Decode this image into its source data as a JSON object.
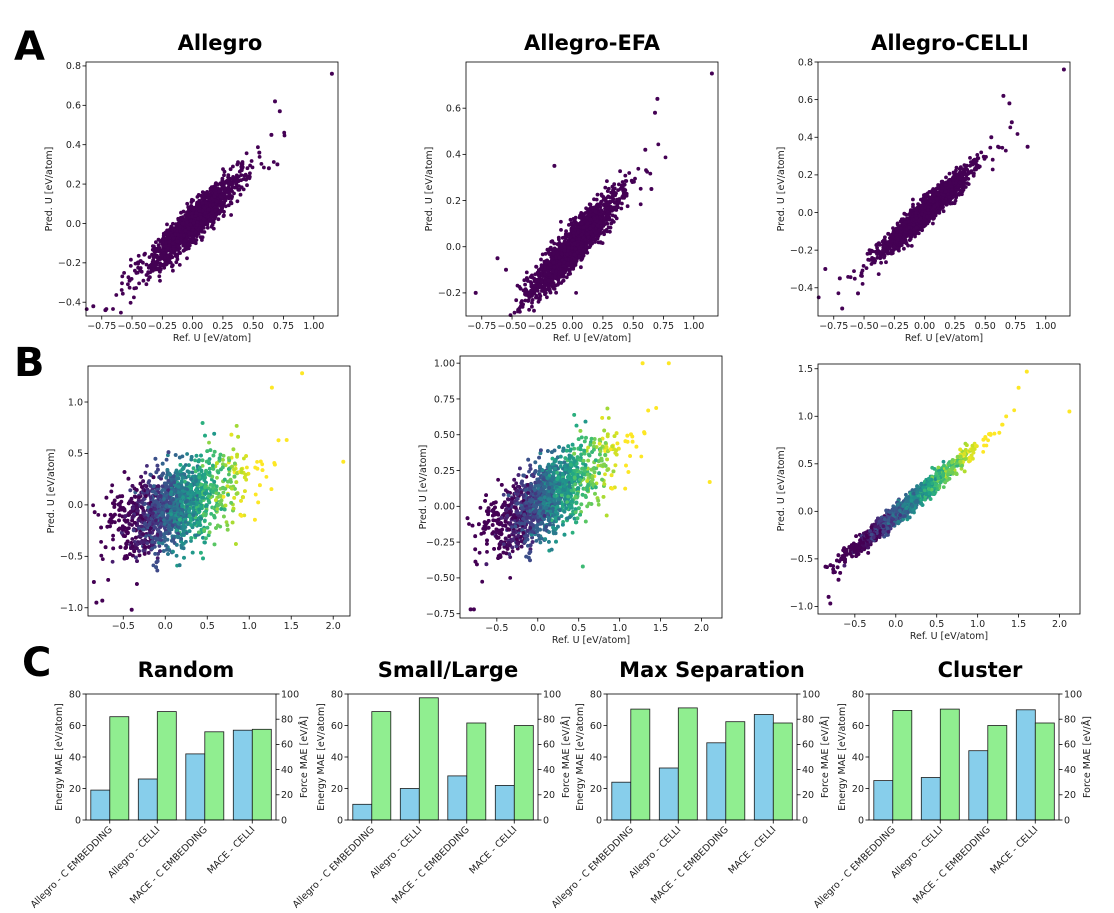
{
  "panel_labels": [
    "A",
    "B",
    "C"
  ],
  "chart_data": [
    {
      "id": "A1",
      "type": "scatter",
      "title": "Allegro",
      "xlabel": "Ref. U [eV/atom]",
      "ylabel": "Pred. U [eV/atom]",
      "xlim": [
        -0.88,
        1.2
      ],
      "ylim": [
        -0.47,
        0.82
      ],
      "xticks": [
        -0.75,
        -0.5,
        -0.25,
        0.0,
        0.25,
        0.5,
        0.75,
        1.0
      ],
      "xtick_labels": [
        "−0.75",
        "−0.50",
        "−0.25",
        "0.00",
        "0.25",
        "0.50",
        "0.75",
        "1.00"
      ],
      "yticks": [
        -0.4,
        -0.2,
        0.0,
        0.2,
        0.4,
        0.6,
        0.8
      ],
      "ytick_labels": [
        "−0.4",
        "−0.2",
        "0.0",
        "0.2",
        "0.4",
        "0.6",
        "0.8"
      ],
      "colormap": "viridis",
      "color_by_x": false,
      "n_points": 1600,
      "trend": {
        "slope": 0.58,
        "intercept": 0.0,
        "spread": 0.045
      },
      "highlight_points": [
        [
          1.15,
          0.76
        ],
        [
          0.68,
          0.62
        ],
        [
          0.72,
          0.57
        ],
        [
          0.65,
          0.45
        ],
        [
          0.55,
          0.36
        ],
        [
          -0.82,
          -0.42
        ],
        [
          -0.72,
          -0.44
        ],
        [
          -0.52,
          -0.29
        ],
        [
          0.63,
          0.28
        ],
        [
          0.7,
          0.3
        ]
      ]
    },
    {
      "id": "A2",
      "type": "scatter",
      "title": "Allegro-EFA",
      "xlabel": "Ref. U [eV/atom]",
      "ylabel": "Pred. U [eV/atom]",
      "xlim": [
        -0.88,
        1.2
      ],
      "ylim": [
        -0.3,
        0.8
      ],
      "xticks": [
        -0.75,
        -0.5,
        -0.25,
        0.0,
        0.25,
        0.5,
        0.75,
        1.0
      ],
      "xtick_labels": [
        "−0.75",
        "−0.50",
        "−0.25",
        "0.00",
        "0.25",
        "0.50",
        "0.75",
        "1.00"
      ],
      "yticks": [
        -0.2,
        0.0,
        0.2,
        0.4,
        0.6
      ],
      "ytick_labels": [
        "−0.2",
        "0.0",
        "0.2",
        "0.4",
        "0.6"
      ],
      "colormap": "viridis",
      "color_by_x": false,
      "n_points": 1600,
      "trend": {
        "slope": 0.55,
        "intercept": 0.0,
        "spread": 0.045
      },
      "highlight_points": [
        [
          1.15,
          0.75
        ],
        [
          0.7,
          0.64
        ],
        [
          0.68,
          0.58
        ],
        [
          0.6,
          0.42
        ],
        [
          -0.15,
          0.35
        ],
        [
          -0.8,
          -0.2
        ],
        [
          -0.62,
          -0.05
        ],
        [
          -0.55,
          -0.1
        ],
        [
          -0.45,
          -0.28
        ],
        [
          0.65,
          0.25
        ]
      ]
    },
    {
      "id": "A3",
      "type": "scatter",
      "title": "Allegro-CELLI",
      "xlabel": "Ref. U [eV/atom]",
      "ylabel": "Pred. U [eV/atom]",
      "xlim": [
        -0.88,
        1.2
      ],
      "ylim": [
        -0.55,
        0.8
      ],
      "xticks": [
        -0.75,
        -0.5,
        -0.25,
        0.0,
        0.25,
        0.5,
        0.75,
        1.0
      ],
      "xtick_labels": [
        "−0.75",
        "−0.50",
        "−0.25",
        "0.00",
        "0.25",
        "0.50",
        "0.75",
        "1.00"
      ],
      "yticks": [
        -0.4,
        -0.2,
        0.0,
        0.2,
        0.4,
        0.6,
        0.8
      ],
      "ytick_labels": [
        "−0.4",
        "−0.2",
        "0.0",
        "0.2",
        "0.4",
        "0.6",
        "0.8"
      ],
      "colormap": "viridis",
      "color_by_x": false,
      "n_points": 1600,
      "trend": {
        "slope": 0.58,
        "intercept": 0.0,
        "spread": 0.035
      },
      "highlight_points": [
        [
          1.15,
          0.76
        ],
        [
          0.65,
          0.62
        ],
        [
          0.7,
          0.58
        ],
        [
          0.72,
          0.48
        ],
        [
          0.55,
          0.4
        ],
        [
          -0.82,
          -0.3
        ],
        [
          -0.7,
          -0.35
        ],
        [
          -0.68,
          -0.51
        ],
        [
          -0.55,
          -0.43
        ],
        [
          0.85,
          0.35
        ]
      ]
    },
    {
      "id": "B1",
      "type": "scatter",
      "title": "",
      "xlabel": "",
      "ylabel": "Pred. U [eV/atom]",
      "xlim": [
        -0.92,
        2.2
      ],
      "ylim": [
        -1.08,
        1.35
      ],
      "xticks": [
        -0.5,
        0.0,
        0.5,
        1.0,
        1.5,
        2.0
      ],
      "xtick_labels": [
        "−0.5",
        "0.0",
        "0.5",
        "1.0",
        "1.5",
        "2.0"
      ],
      "yticks": [
        -1.0,
        -0.5,
        0.0,
        0.5,
        1.0
      ],
      "ytick_labels": [
        "−1.0",
        "−0.5",
        "0.0",
        "0.5",
        "1.0"
      ],
      "colormap": "viridis",
      "color_by_x": true,
      "n_points": 2600,
      "trend": {
        "slope": 0.3,
        "intercept": -0.05,
        "spread": 0.2
      },
      "highlight_points": [
        [
          1.63,
          1.28
        ],
        [
          1.27,
          1.14
        ],
        [
          2.12,
          0.42
        ],
        [
          -0.82,
          -0.95
        ],
        [
          -0.75,
          -0.93
        ],
        [
          -0.4,
          -1.02
        ],
        [
          0.45,
          -0.52
        ],
        [
          -0.85,
          -0.75
        ]
      ]
    },
    {
      "id": "B2",
      "type": "scatter",
      "title": "",
      "xlabel": "Ref. U [eV/atom]",
      "ylabel": "Pred. U [eV/atom]",
      "xlim": [
        -0.95,
        2.25
      ],
      "ylim": [
        -0.78,
        1.05
      ],
      "xticks": [
        -0.5,
        0.0,
        0.5,
        1.0,
        1.5,
        2.0
      ],
      "xtick_labels": [
        "−0.5",
        "0.0",
        "0.5",
        "1.0",
        "1.5",
        "2.0"
      ],
      "yticks": [
        -0.75,
        -0.5,
        -0.25,
        0.0,
        0.25,
        0.5,
        0.75,
        1.0
      ],
      "ytick_labels": [
        "−0.75",
        "−0.50",
        "−0.25",
        "0.00",
        "0.25",
        "0.50",
        "0.75",
        "1.00"
      ],
      "colormap": "viridis",
      "color_by_x": true,
      "n_points": 2600,
      "trend": {
        "slope": 0.35,
        "intercept": 0.02,
        "spread": 0.13
      },
      "highlight_points": [
        [
          1.6,
          1.0
        ],
        [
          1.28,
          1.0
        ],
        [
          2.1,
          0.17
        ],
        [
          -0.82,
          -0.72
        ],
        [
          -0.78,
          -0.72
        ],
        [
          0.55,
          -0.42
        ]
      ]
    },
    {
      "id": "B3",
      "type": "scatter",
      "title": "",
      "xlabel": "Ref. U [eV/atom]",
      "ylabel": "Pred. U [eV/atom]",
      "xlim": [
        -0.95,
        2.25
      ],
      "ylim": [
        -1.08,
        1.55
      ],
      "xticks": [
        -0.5,
        0.0,
        0.5,
        1.0,
        1.5,
        2.0
      ],
      "xtick_labels": [
        "−0.5",
        "0.0",
        "0.5",
        "1.0",
        "1.5",
        "2.0"
      ],
      "yticks": [
        -1.0,
        -0.5,
        0.0,
        0.5,
        1.0,
        1.5
      ],
      "ytick_labels": [
        "−1.0",
        "−0.5",
        "0.0",
        "0.5",
        "1.0",
        "1.5"
      ],
      "colormap": "viridis",
      "color_by_x": true,
      "n_points": 2400,
      "trend": {
        "slope": 0.72,
        "intercept": -0.04,
        "spread": 0.05
      },
      "highlight_points": [
        [
          1.6,
          1.47
        ],
        [
          2.12,
          1.05
        ],
        [
          1.5,
          1.3
        ],
        [
          -0.82,
          -0.9
        ],
        [
          -0.8,
          -0.97
        ],
        [
          -0.7,
          -0.72
        ]
      ]
    },
    {
      "id": "C1",
      "type": "bar",
      "title": "Random",
      "categories": [
        "Allegro - C EMBEDDING",
        "Allegro - CELLI",
        "MACE - C EMBEDDING",
        "MACE - CELLI"
      ],
      "series": [
        {
          "name": "Energy MAE",
          "axis": "left",
          "color": "#87ceeb",
          "values": [
            19,
            26,
            42,
            57
          ]
        },
        {
          "name": "Force MAE",
          "axis": "right",
          "color": "#90ee90",
          "values": [
            82,
            86,
            70,
            72
          ]
        }
      ],
      "ylabel": "Energy MAE [eV/atom]",
      "ylabel_right": "Force MAE [eV/Å]",
      "ylim": [
        0,
        80
      ],
      "ylim_right": [
        0,
        100
      ],
      "yticks": [
        0,
        20,
        40,
        60,
        80
      ],
      "yticks_right": [
        0,
        20,
        40,
        60,
        80,
        100
      ]
    },
    {
      "id": "C2",
      "type": "bar",
      "title": "Small/Large",
      "categories": [
        "Allegro - C EMBEDDING",
        "Allegro - CELLI",
        "MACE - C EMBEDDING",
        "MACE - CELLI"
      ],
      "series": [
        {
          "name": "Energy MAE",
          "axis": "left",
          "color": "#87ceeb",
          "values": [
            10,
            20,
            28,
            22
          ]
        },
        {
          "name": "Force MAE",
          "axis": "right",
          "color": "#90ee90",
          "values": [
            86,
            97,
            77,
            75
          ]
        }
      ],
      "ylabel": "Energy MAE [eV/atom]",
      "ylabel_right": "Force MAE [eV/Å]",
      "ylim": [
        0,
        80
      ],
      "ylim_right": [
        0,
        100
      ],
      "yticks": [
        0,
        20,
        40,
        60,
        80
      ],
      "yticks_right": [
        0,
        20,
        40,
        60,
        80,
        100
      ]
    },
    {
      "id": "C3",
      "type": "bar",
      "title": "Max Separation",
      "categories": [
        "Allegro - C EMBEDDING",
        "Allegro - CELLI",
        "MACE - C EMBEDDING",
        "MACE - CELLI"
      ],
      "series": [
        {
          "name": "Energy MAE",
          "axis": "left",
          "color": "#87ceeb",
          "values": [
            24,
            33,
            49,
            67
          ]
        },
        {
          "name": "Force MAE",
          "axis": "right",
          "color": "#90ee90",
          "values": [
            88,
            89,
            78,
            77
          ]
        }
      ],
      "ylabel": "Energy MAE [eV/atom]",
      "ylabel_right": "Force MAE [eV/Å]",
      "ylim": [
        0,
        80
      ],
      "ylim_right": [
        0,
        100
      ],
      "yticks": [
        0,
        20,
        40,
        60,
        80
      ],
      "yticks_right": [
        0,
        20,
        40,
        60,
        80,
        100
      ]
    },
    {
      "id": "C4",
      "type": "bar",
      "title": "Cluster",
      "categories": [
        "Allegro - C EMBEDDING",
        "Allegro - CELLI",
        "MACE - C EMBEDDING",
        "MACE - CELLI"
      ],
      "series": [
        {
          "name": "Energy MAE",
          "axis": "left",
          "color": "#87ceeb",
          "values": [
            25,
            27,
            44,
            70
          ]
        },
        {
          "name": "Force MAE",
          "axis": "right",
          "color": "#90ee90",
          "values": [
            87,
            88,
            75,
            77
          ]
        }
      ],
      "ylabel": "Energy MAE [eV/atom]",
      "ylabel_right": "Force MAE [eV/Å]",
      "ylim": [
        0,
        80
      ],
      "ylim_right": [
        0,
        100
      ],
      "yticks": [
        0,
        20,
        40,
        60,
        80
      ],
      "yticks_right": [
        0,
        20,
        40,
        60,
        80,
        100
      ]
    }
  ]
}
